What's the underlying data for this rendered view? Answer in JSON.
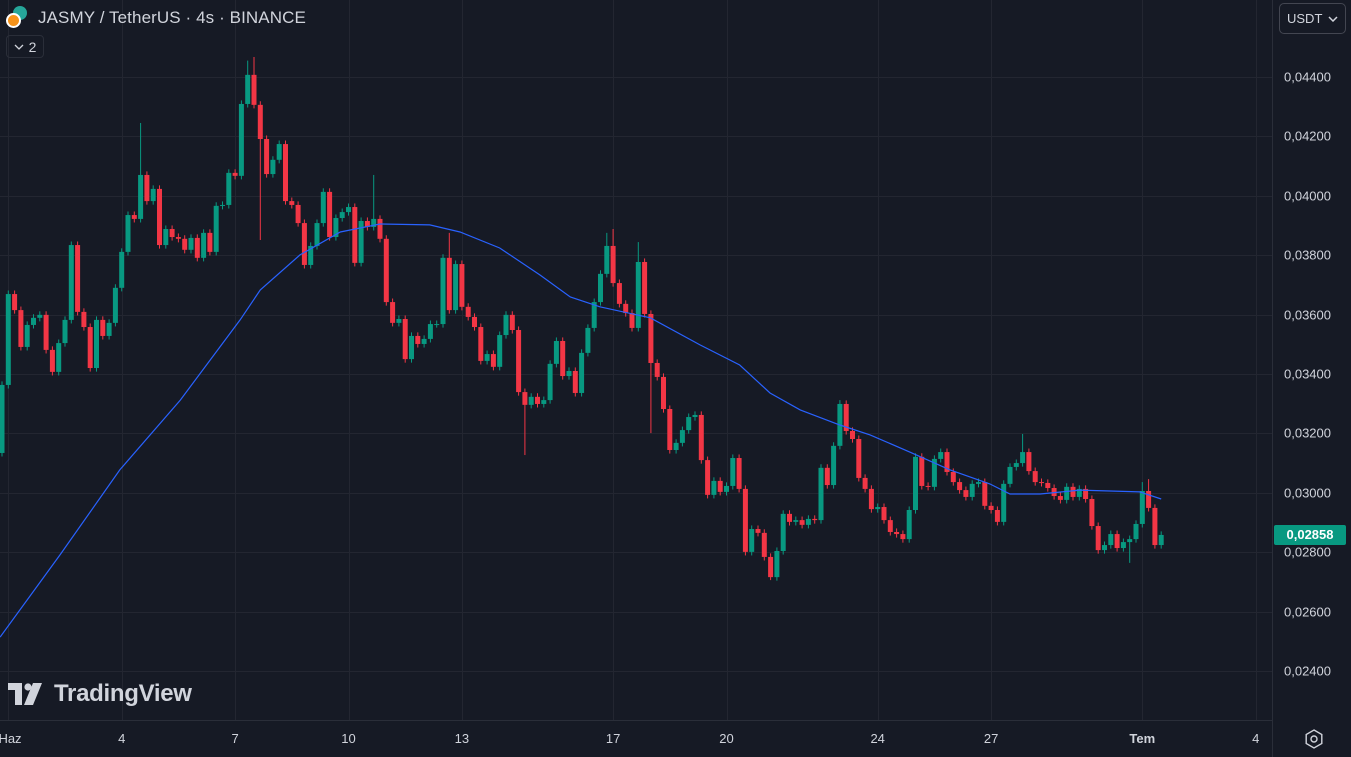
{
  "header": {
    "symbol_title": "JASMY / TetherUS · 4s · BINANCE",
    "indicator_count": "2",
    "currency": "USDT"
  },
  "watermark": "TradingView",
  "colors": {
    "background": "#161a25",
    "grid": "#232631",
    "up": "#089981",
    "down": "#f23645",
    "ema": "#2962ff",
    "axis_text": "#d1d4dc"
  },
  "icons": {
    "coin_pair": "jasmy-usdt-coin-icons",
    "collapse": "chevron-down-icon",
    "currency_dropdown": "chevron-down-icon",
    "settings": "gear-icon",
    "logo": "tradingview-logo-icon"
  },
  "chart_data": {
    "type": "candlestick",
    "title": "JASMY / TetherUS · 4s · BINANCE",
    "ylim": [
      0.02235,
      0.04659
    ],
    "grid": true,
    "y_ticks": [
      "0,04400",
      "0,04200",
      "0,04000",
      "0,03800",
      "0,03600",
      "0,03400",
      "0,03200",
      "0,03000",
      "0,02800",
      "0,02600",
      "0,02400"
    ],
    "y_tick_values": [
      0.044,
      0.042,
      0.04,
      0.038,
      0.036,
      0.034,
      0.032,
      0.03,
      0.028,
      0.026,
      0.024
    ],
    "x_ticks": [
      {
        "label": "Haz",
        "index": 2,
        "bold": false
      },
      {
        "label": "4",
        "index": 20,
        "bold": false
      },
      {
        "label": "7",
        "index": 38,
        "bold": false
      },
      {
        "label": "10",
        "index": 56,
        "bold": false
      },
      {
        "label": "13",
        "index": 74,
        "bold": false
      },
      {
        "label": "17",
        "index": 98,
        "bold": false
      },
      {
        "label": "20",
        "index": 116,
        "bold": false
      },
      {
        "label": "24",
        "index": 140,
        "bold": false
      },
      {
        "label": "27",
        "index": 158,
        "bold": false
      },
      {
        "label": "Tem",
        "index": 182,
        "bold": true
      },
      {
        "label": "4",
        "index": 200,
        "bold": false
      }
    ],
    "last_price": "0,02858",
    "last_price_value": 0.02858,
    "first_open": 0.03134,
    "close": [
      0.03363,
      0.03669,
      0.03615,
      0.03491,
      0.03565,
      0.03589,
      0.03599,
      0.03481,
      0.03407,
      0.03504,
      0.03582,
      0.03834,
      0.03609,
      0.03558,
      0.0342,
      0.03582,
      0.03528,
      0.03572,
      0.0369,
      0.03811,
      0.03935,
      0.03922,
      0.0407,
      0.03982,
      0.04023,
      0.03834,
      0.03888,
      0.03861,
      0.03855,
      0.03818,
      0.03858,
      0.03791,
      0.03875,
      0.03811,
      0.03966,
      0.03969,
      0.04077,
      0.04067,
      0.04309,
      0.04407,
      0.04306,
      0.04191,
      0.04073,
      0.04121,
      0.04174,
      0.03982,
      0.03969,
      0.03908,
      0.03767,
      0.03831,
      0.03908,
      0.04013,
      0.03861,
      0.03925,
      0.03945,
      0.03962,
      0.03774,
      0.03915,
      0.03895,
      0.03922,
      0.03855,
      0.03642,
      0.03572,
      0.03585,
      0.0345,
      0.03528,
      0.03501,
      0.03518,
      0.03568,
      0.03568,
      0.03791,
      0.03615,
      0.0377,
      0.03626,
      0.03592,
      0.03558,
      0.03444,
      0.03467,
      0.03424,
      0.03531,
      0.03599,
      0.03548,
      0.03339,
      0.03296,
      0.03323,
      0.03299,
      0.03312,
      0.03434,
      0.03511,
      0.03393,
      0.0341,
      0.03336,
      0.03471,
      0.03555,
      0.03642,
      0.03737,
      0.03831,
      0.03706,
      0.03636,
      0.03605,
      0.03555,
      0.03777,
      0.03602,
      0.03437,
      0.0339,
      0.03282,
      0.03144,
      0.03168,
      0.03211,
      0.03255,
      0.03262,
      0.0311,
      0.02993,
      0.0304,
      0.03003,
      0.03023,
      0.03117,
      0.03013,
      0.02801,
      0.02878,
      0.02865,
      0.02784,
      0.02716,
      0.02804,
      0.02929,
      0.02902,
      0.02908,
      0.02892,
      0.02912,
      0.02908,
      0.03084,
      0.03026,
      0.03158,
      0.03299,
      0.03208,
      0.03181,
      0.0305,
      0.03013,
      0.02945,
      0.02952,
      0.02908,
      0.02868,
      0.02861,
      0.02844,
      0.02942,
      0.03121,
      0.03023,
      0.0302,
      0.03114,
      0.03137,
      0.0307,
      0.03036,
      0.03009,
      0.02986,
      0.0303,
      0.03036,
      0.02956,
      0.02942,
      0.02902,
      0.0303,
      0.03087,
      0.031,
      0.03137,
      0.03073,
      0.03036,
      0.03033,
      0.03016,
      0.02989,
      0.02976,
      0.0302,
      0.02986,
      0.03013,
      0.02979,
      0.02888,
      0.02807,
      0.02824,
      0.02861,
      0.02814,
      0.02834,
      0.02844,
      0.02895,
      0.03006,
      0.02949,
      0.02824,
      0.02858
    ],
    "extremes": [
      {
        "index": 23,
        "high": 0.04245
      },
      {
        "index": 40,
        "high": 0.04455
      },
      {
        "index": 41,
        "high": 0.04467
      },
      {
        "index": 42,
        "low": 0.03851
      },
      {
        "index": 60,
        "high": 0.0407
      },
      {
        "index": 72,
        "high": 0.03875
      },
      {
        "index": 84,
        "low": 0.03127
      },
      {
        "index": 97,
        "high": 0.03875
      },
      {
        "index": 98,
        "high": 0.03888
      },
      {
        "index": 102,
        "high": 0.03844
      },
      {
        "index": 104,
        "low": 0.03201
      },
      {
        "index": 123,
        "low": 0.02706
      },
      {
        "index": 134,
        "high": 0.03312
      },
      {
        "index": 163,
        "high": 0.03198
      },
      {
        "index": 180,
        "low": 0.02764
      },
      {
        "index": 182,
        "high": 0.03036
      },
      {
        "index": 183,
        "high": 0.03046
      }
    ],
    "ema": [
      [
        0.7,
        0.02514
      ],
      [
        10.2,
        0.02791
      ],
      [
        19.7,
        0.03077
      ],
      [
        29.3,
        0.03312
      ],
      [
        38.8,
        0.03582
      ],
      [
        42,
        0.03683
      ],
      [
        48.3,
        0.03801
      ],
      [
        54.7,
        0.03878
      ],
      [
        61,
        0.03905
      ],
      [
        68.9,
        0.03902
      ],
      [
        73.7,
        0.03878
      ],
      [
        80,
        0.03824
      ],
      [
        86.4,
        0.03733
      ],
      [
        91.2,
        0.03659
      ],
      [
        95.9,
        0.03626
      ],
      [
        103.9,
        0.03589
      ],
      [
        111.8,
        0.03498
      ],
      [
        118.1,
        0.0343
      ],
      [
        122.9,
        0.03336
      ],
      [
        127.7,
        0.03279
      ],
      [
        134,
        0.03228
      ],
      [
        138.8,
        0.03195
      ],
      [
        145.1,
        0.03137
      ],
      [
        151.5,
        0.03077
      ],
      [
        157.8,
        0.0303
      ],
      [
        161,
        0.02996
      ],
      [
        165.8,
        0.02996
      ],
      [
        172.1,
        0.03009
      ],
      [
        181.6,
        0.03003
      ],
      [
        185,
        0.02979
      ]
    ]
  }
}
